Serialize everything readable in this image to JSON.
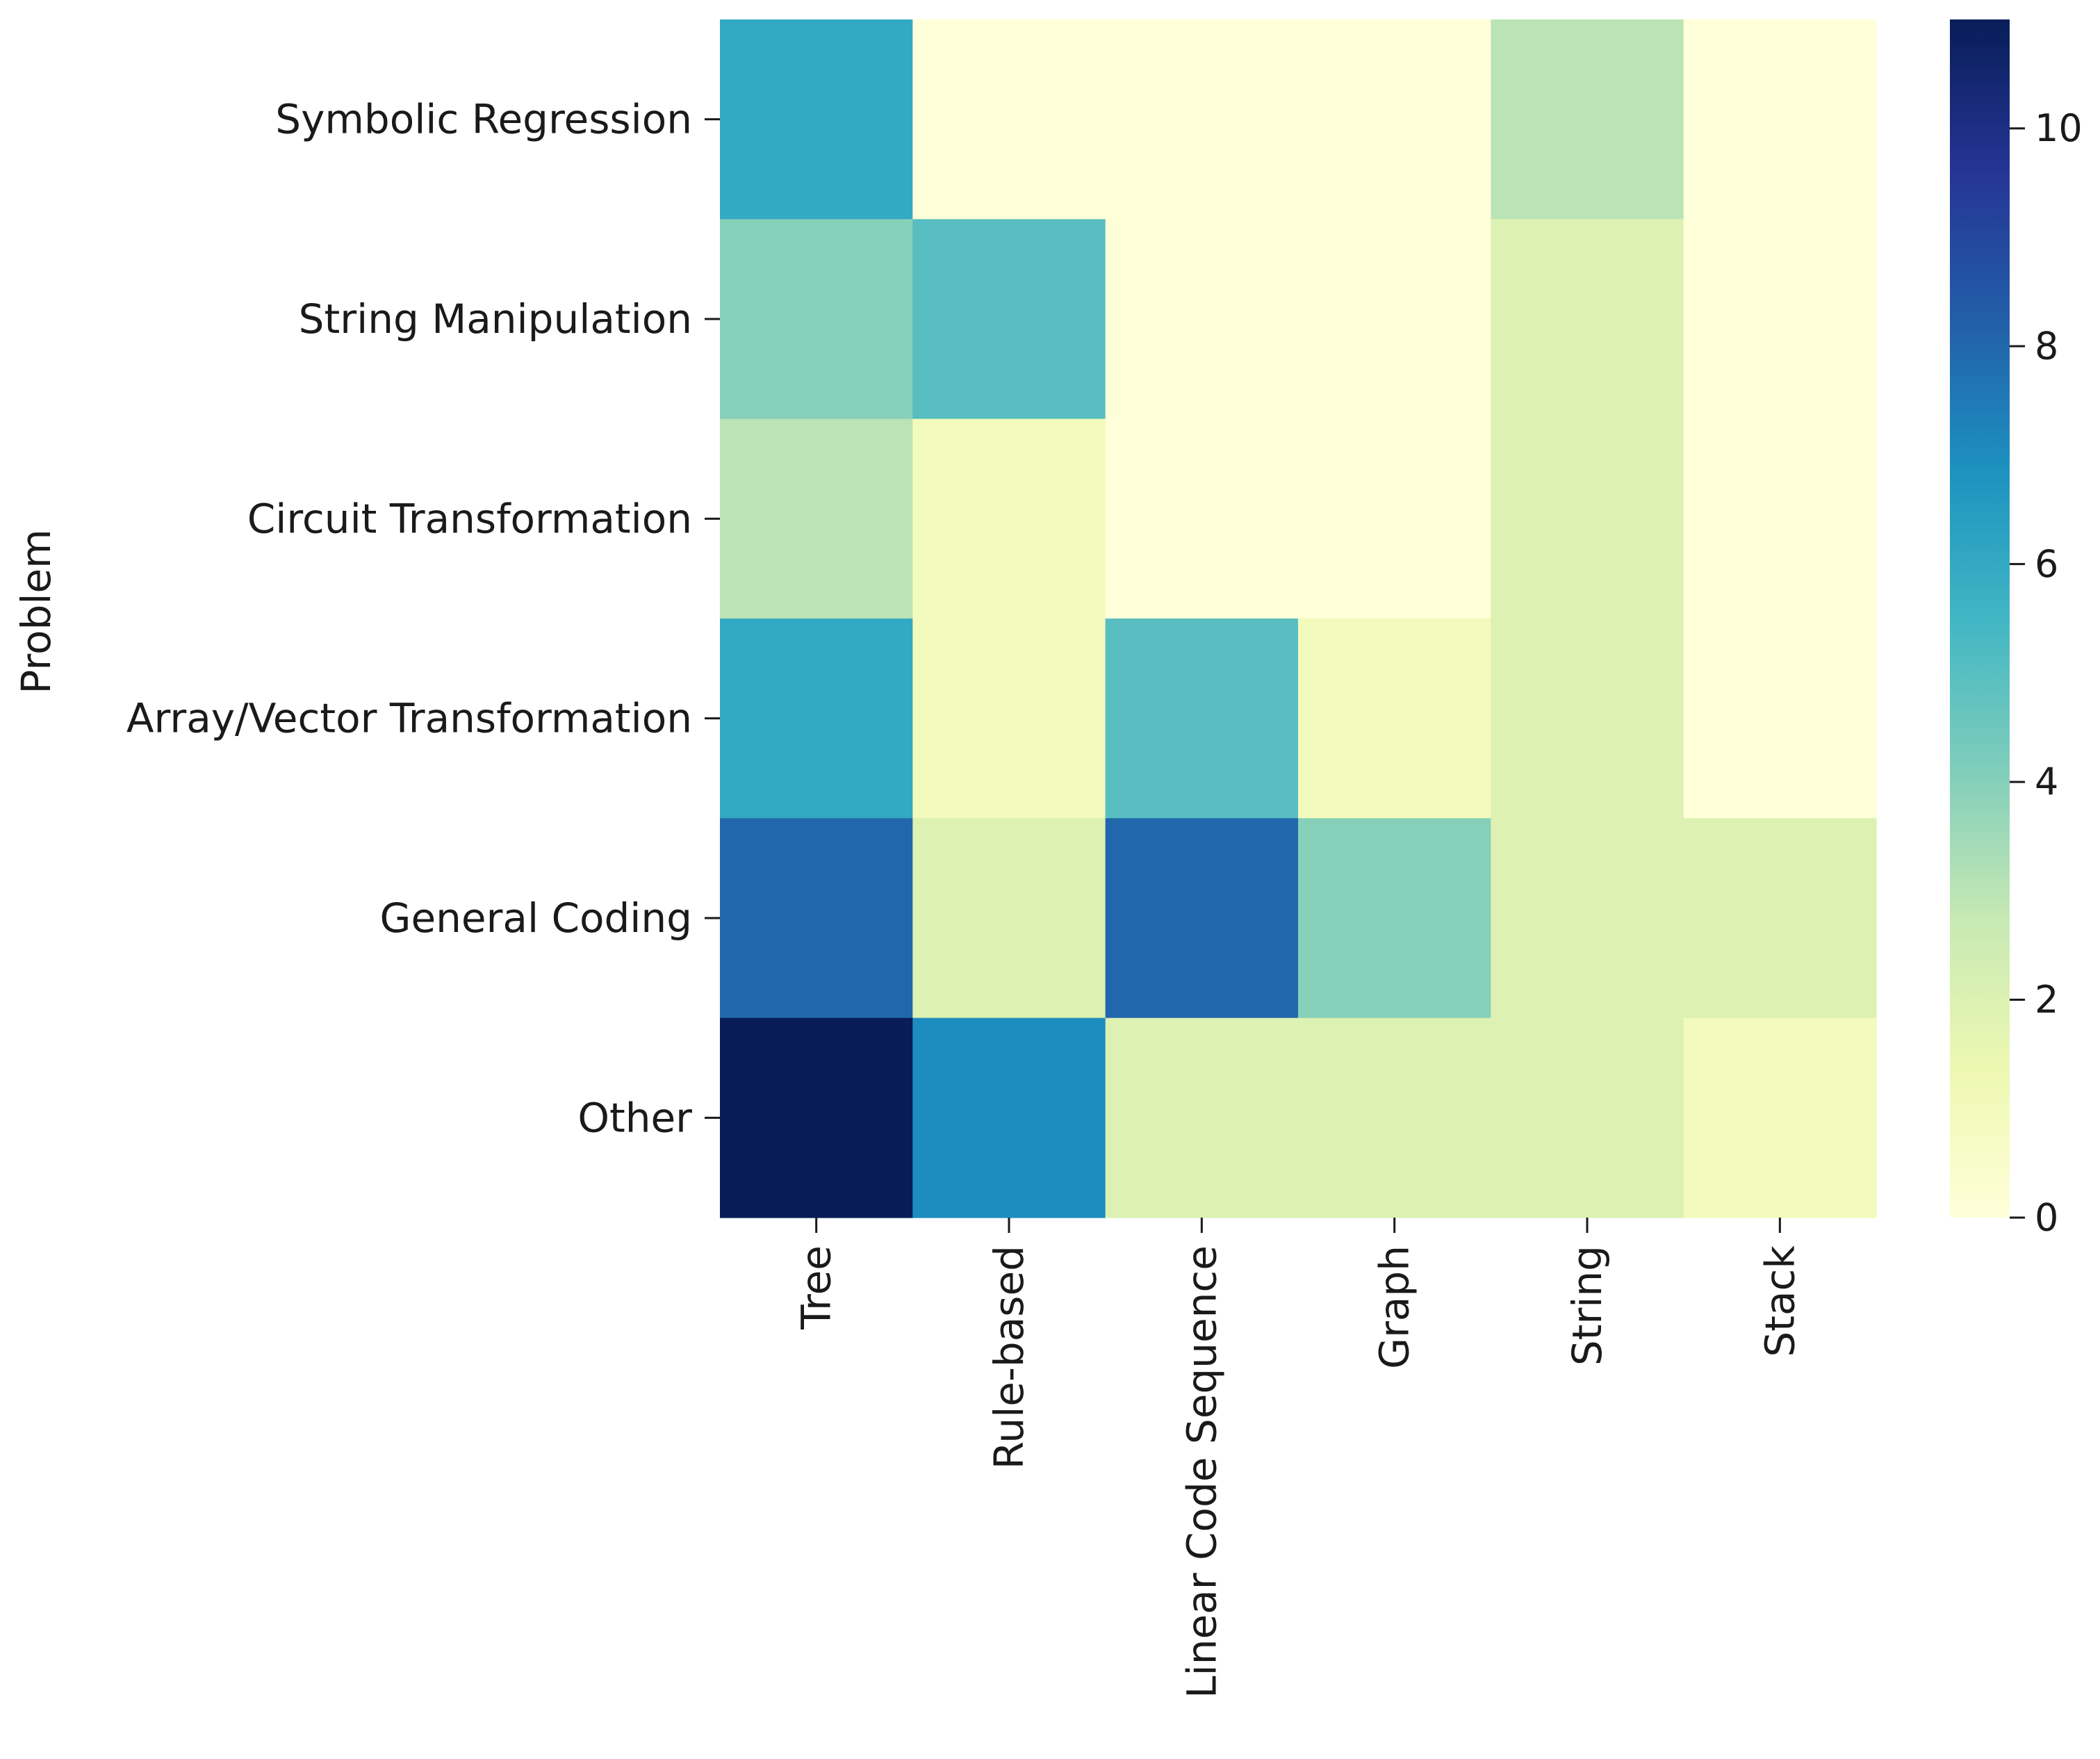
{
  "chart_data": {
    "type": "heatmap",
    "title": "",
    "xlabel": "",
    "ylabel": "Problem",
    "x_categories": [
      "Tree",
      "Rule-based",
      "Linear Code Sequence",
      "Graph",
      "String",
      "Stack"
    ],
    "y_categories": [
      "Symbolic Regression",
      "String Manipulation",
      "Circuit Transformation",
      "Array/Vector Transformation",
      "General Coding",
      "Other"
    ],
    "values": [
      [
        6,
        0,
        0,
        0,
        3,
        0
      ],
      [
        4,
        5,
        0,
        0,
        2,
        0
      ],
      [
        3,
        1,
        0,
        0,
        2,
        0
      ],
      [
        6,
        1,
        5,
        1,
        2,
        0
      ],
      [
        8,
        2,
        8,
        4,
        2,
        2
      ],
      [
        11,
        7,
        2,
        2,
        2,
        1
      ]
    ],
    "colorbar": {
      "min": 0,
      "max": 11,
      "ticks": [
        0,
        2,
        4,
        6,
        8,
        10
      ],
      "colormap": "YlGnBu"
    }
  }
}
